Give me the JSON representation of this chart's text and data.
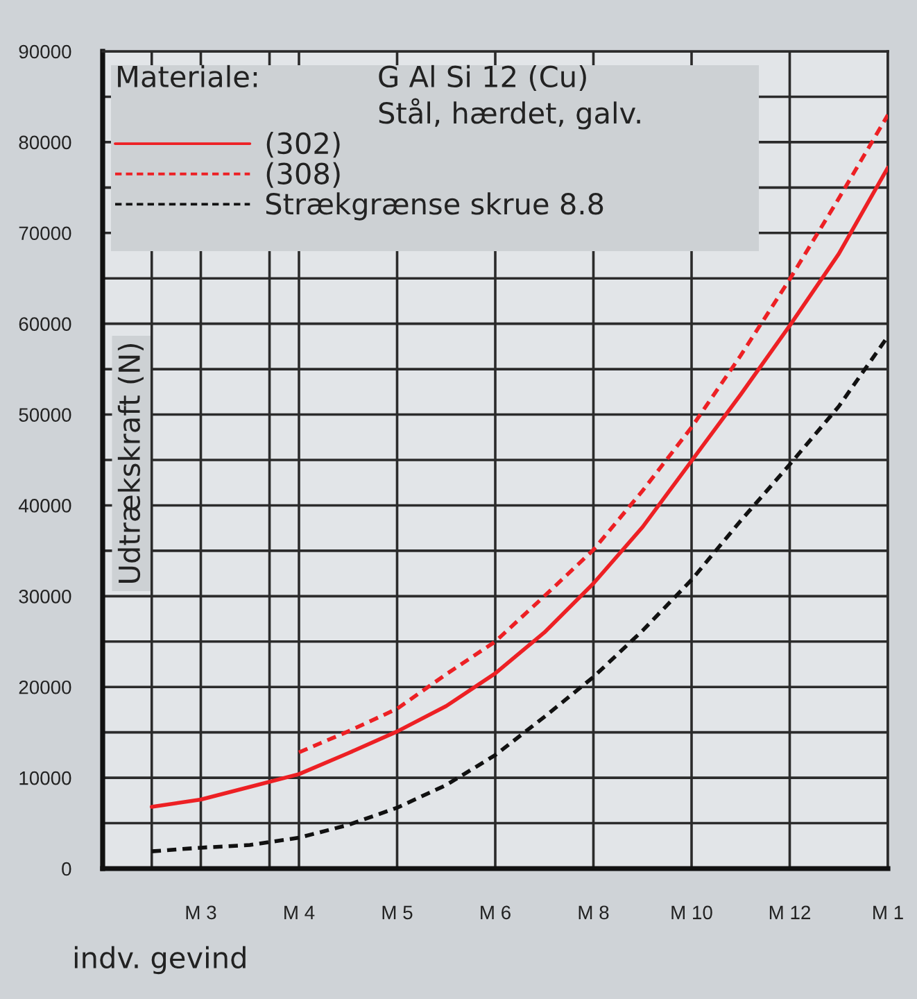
{
  "chart_data": {
    "type": "line",
    "xlabel": "indv. gevind",
    "ylabel": "Udtrækskraft (N)",
    "annotations": [
      "Materiale:",
      "G Al Si 12 (Cu)",
      "Stål, hærdet, galv."
    ],
    "categories": [
      null,
      "M 3",
      null,
      "M 4",
      null,
      "M 5",
      null,
      "M 6",
      null,
      "M 8",
      null,
      "M 10",
      null,
      "M 12",
      null,
      "M 1"
    ],
    "ylim": [
      0,
      90000
    ],
    "yticks": [
      0,
      {
        "value": 5000,
        "label": null
      },
      10000,
      {
        "value": 15000,
        "label": null
      },
      20000,
      {
        "value": 25000,
        "label": null
      },
      30000,
      {
        "value": 35000,
        "label": null
      },
      40000,
      {
        "value": 45000,
        "label": null
      },
      50000,
      {
        "value": 55000,
        "label": null
      },
      60000,
      {
        "value": 65000,
        "label": null
      },
      70000,
      {
        "value": 75000,
        "label": null
      },
      80000,
      {
        "value": 85000,
        "label": null
      },
      90000
    ],
    "grid": true,
    "legend": "top left",
    "series": [
      {
        "name": "(302)",
        "color": "#ed2024",
        "line_style": "solid",
        "values": [
          6800,
          7600,
          9000,
          10400,
          12700,
          15100,
          17900,
          21500,
          26000,
          31400,
          37600,
          44900,
          52200,
          59800,
          67700,
          77200
        ]
      },
      {
        "name": "(308)",
        "color": "#ed2024",
        "line_style": "dashed",
        "values": [
          null,
          null,
          null,
          12800,
          15100,
          17600,
          21400,
          25000,
          30000,
          35100,
          41600,
          48600,
          56500,
          64900,
          73800,
          83000
        ]
      },
      {
        "name": "Strækgrænse skrue 8.8",
        "color": "#111111",
        "line_style": "dashed",
        "values": [
          1900,
          2300,
          2600,
          3400,
          4800,
          6700,
          9200,
          12500,
          16700,
          21100,
          26200,
          31800,
          38300,
          44500,
          50900,
          58600
        ]
      }
    ]
  }
}
